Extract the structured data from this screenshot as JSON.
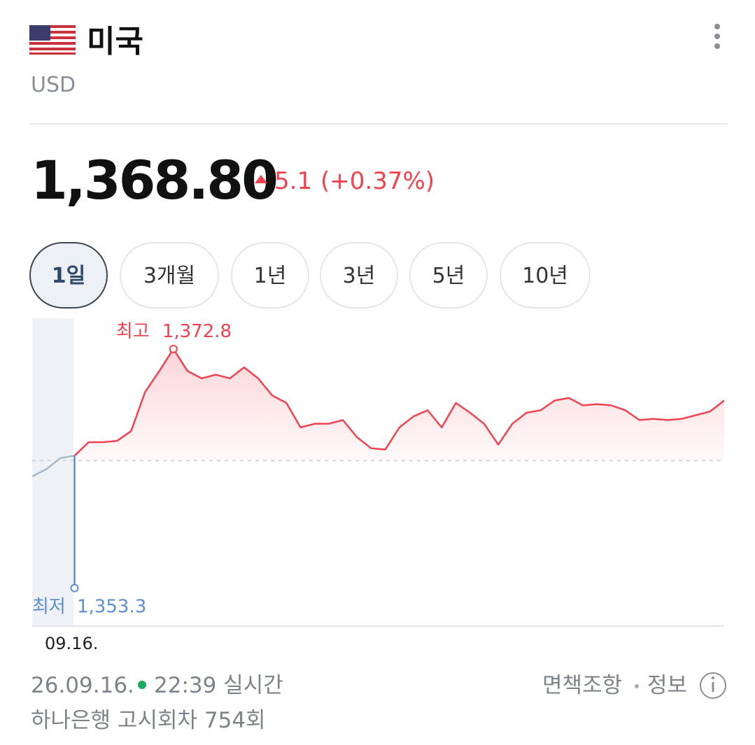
{
  "header": {
    "country": "미국",
    "currency": "USD"
  },
  "quote": {
    "price": "1,368.80",
    "change": "5.1",
    "change_percent": "(+0.37%)"
  },
  "tabs": {
    "items": [
      "1일",
      "3개월",
      "1년",
      "3년",
      "5년",
      "10년"
    ],
    "active": 0
  },
  "chart_data": {
    "type": "line",
    "x_label": "09.16.",
    "ylim": [
      1350.2,
      1375.3
    ],
    "reference_line": 1363.7,
    "series": [
      {
        "color": "#a9b8c9",
        "values": [
          1362.4,
          1363.0,
          1363.9,
          1364.1,
          null,
          null,
          null,
          null,
          null,
          null,
          null,
          null,
          null,
          null,
          null,
          null,
          null,
          null,
          null,
          null,
          null,
          null,
          null,
          null,
          null,
          null,
          null,
          null,
          null,
          null,
          null,
          null,
          null,
          null,
          null,
          null,
          null,
          null,
          null,
          null,
          null,
          null,
          null,
          null,
          null,
          null,
          null,
          null,
          null,
          null
        ]
      },
      {
        "color": "#f0434f",
        "values": [
          null,
          null,
          null,
          1364.1,
          1365.2,
          1365.2,
          1365.3,
          1366.1,
          1369.3,
          1371.0,
          1372.8,
          1371.0,
          1370.4,
          1370.7,
          1370.4,
          1371.3,
          1370.4,
          1369.0,
          1368.4,
          1366.4,
          1366.7,
          1366.7,
          1367.0,
          1365.6,
          1364.7,
          1364.6,
          1366.4,
          1367.3,
          1367.8,
          1366.4,
          1368.4,
          1367.6,
          1366.7,
          1365.0,
          1366.7,
          1367.6,
          1367.8,
          1368.6,
          1368.8,
          1368.2,
          1368.3,
          1368.2,
          1367.8,
          1367.0,
          1367.1,
          1367.0,
          1367.1,
          1367.4,
          1367.7,
          1368.6
        ]
      }
    ],
    "high": {
      "label": "최고",
      "value": 1372.8,
      "value_label": "1,372.8"
    },
    "low": {
      "label": "최저",
      "value": 1353.3,
      "value_label": "1,353.3",
      "color": "#5b8fd0"
    }
  },
  "footer": {
    "date": "26.09.16.",
    "time": "22:39 실시간",
    "notice": "하나은행 고시회차 754회",
    "disclaimer": "면책조항",
    "info": "정보"
  }
}
